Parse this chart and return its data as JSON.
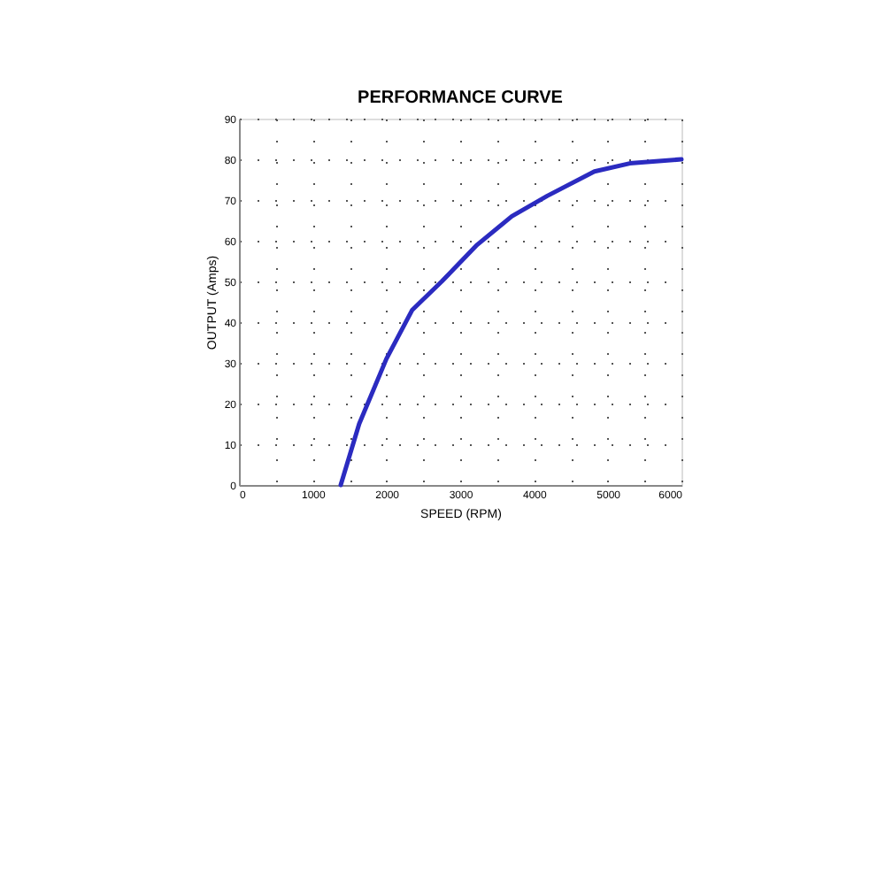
{
  "chart_data": {
    "type": "line",
    "title": "PERFORMANCE CURVE",
    "xlabel": "SPEED (RPM)",
    "ylabel": "OUTPUT (Amps)",
    "x": [
      1380,
      1630,
      2000,
      2350,
      2750,
      3230,
      3700,
      4180,
      4820,
      5300,
      6000
    ],
    "series": [
      {
        "color": "#2b2bc0",
        "values": [
          0,
          15,
          31,
          43,
          50,
          59,
          66,
          71,
          77,
          79,
          80
        ]
      }
    ],
    "xlim": [
      0,
      6000
    ],
    "ylim": [
      0,
      90
    ],
    "xticks": [
      0,
      {
        "value": 500,
        "label": null
      },
      1000,
      {
        "value": 1500,
        "label": null
      },
      2000,
      {
        "value": 2500,
        "label": null
      },
      3000,
      {
        "value": 3500,
        "label": null
      },
      4000,
      {
        "value": 4500,
        "label": null
      },
      5000,
      {
        "value": 5500,
        "label": null
      },
      6000
    ],
    "yticks": [
      0,
      10,
      20,
      30,
      40,
      50,
      60,
      70,
      80,
      90
    ],
    "grid": true,
    "line_style": "solid",
    "marker": "none"
  }
}
